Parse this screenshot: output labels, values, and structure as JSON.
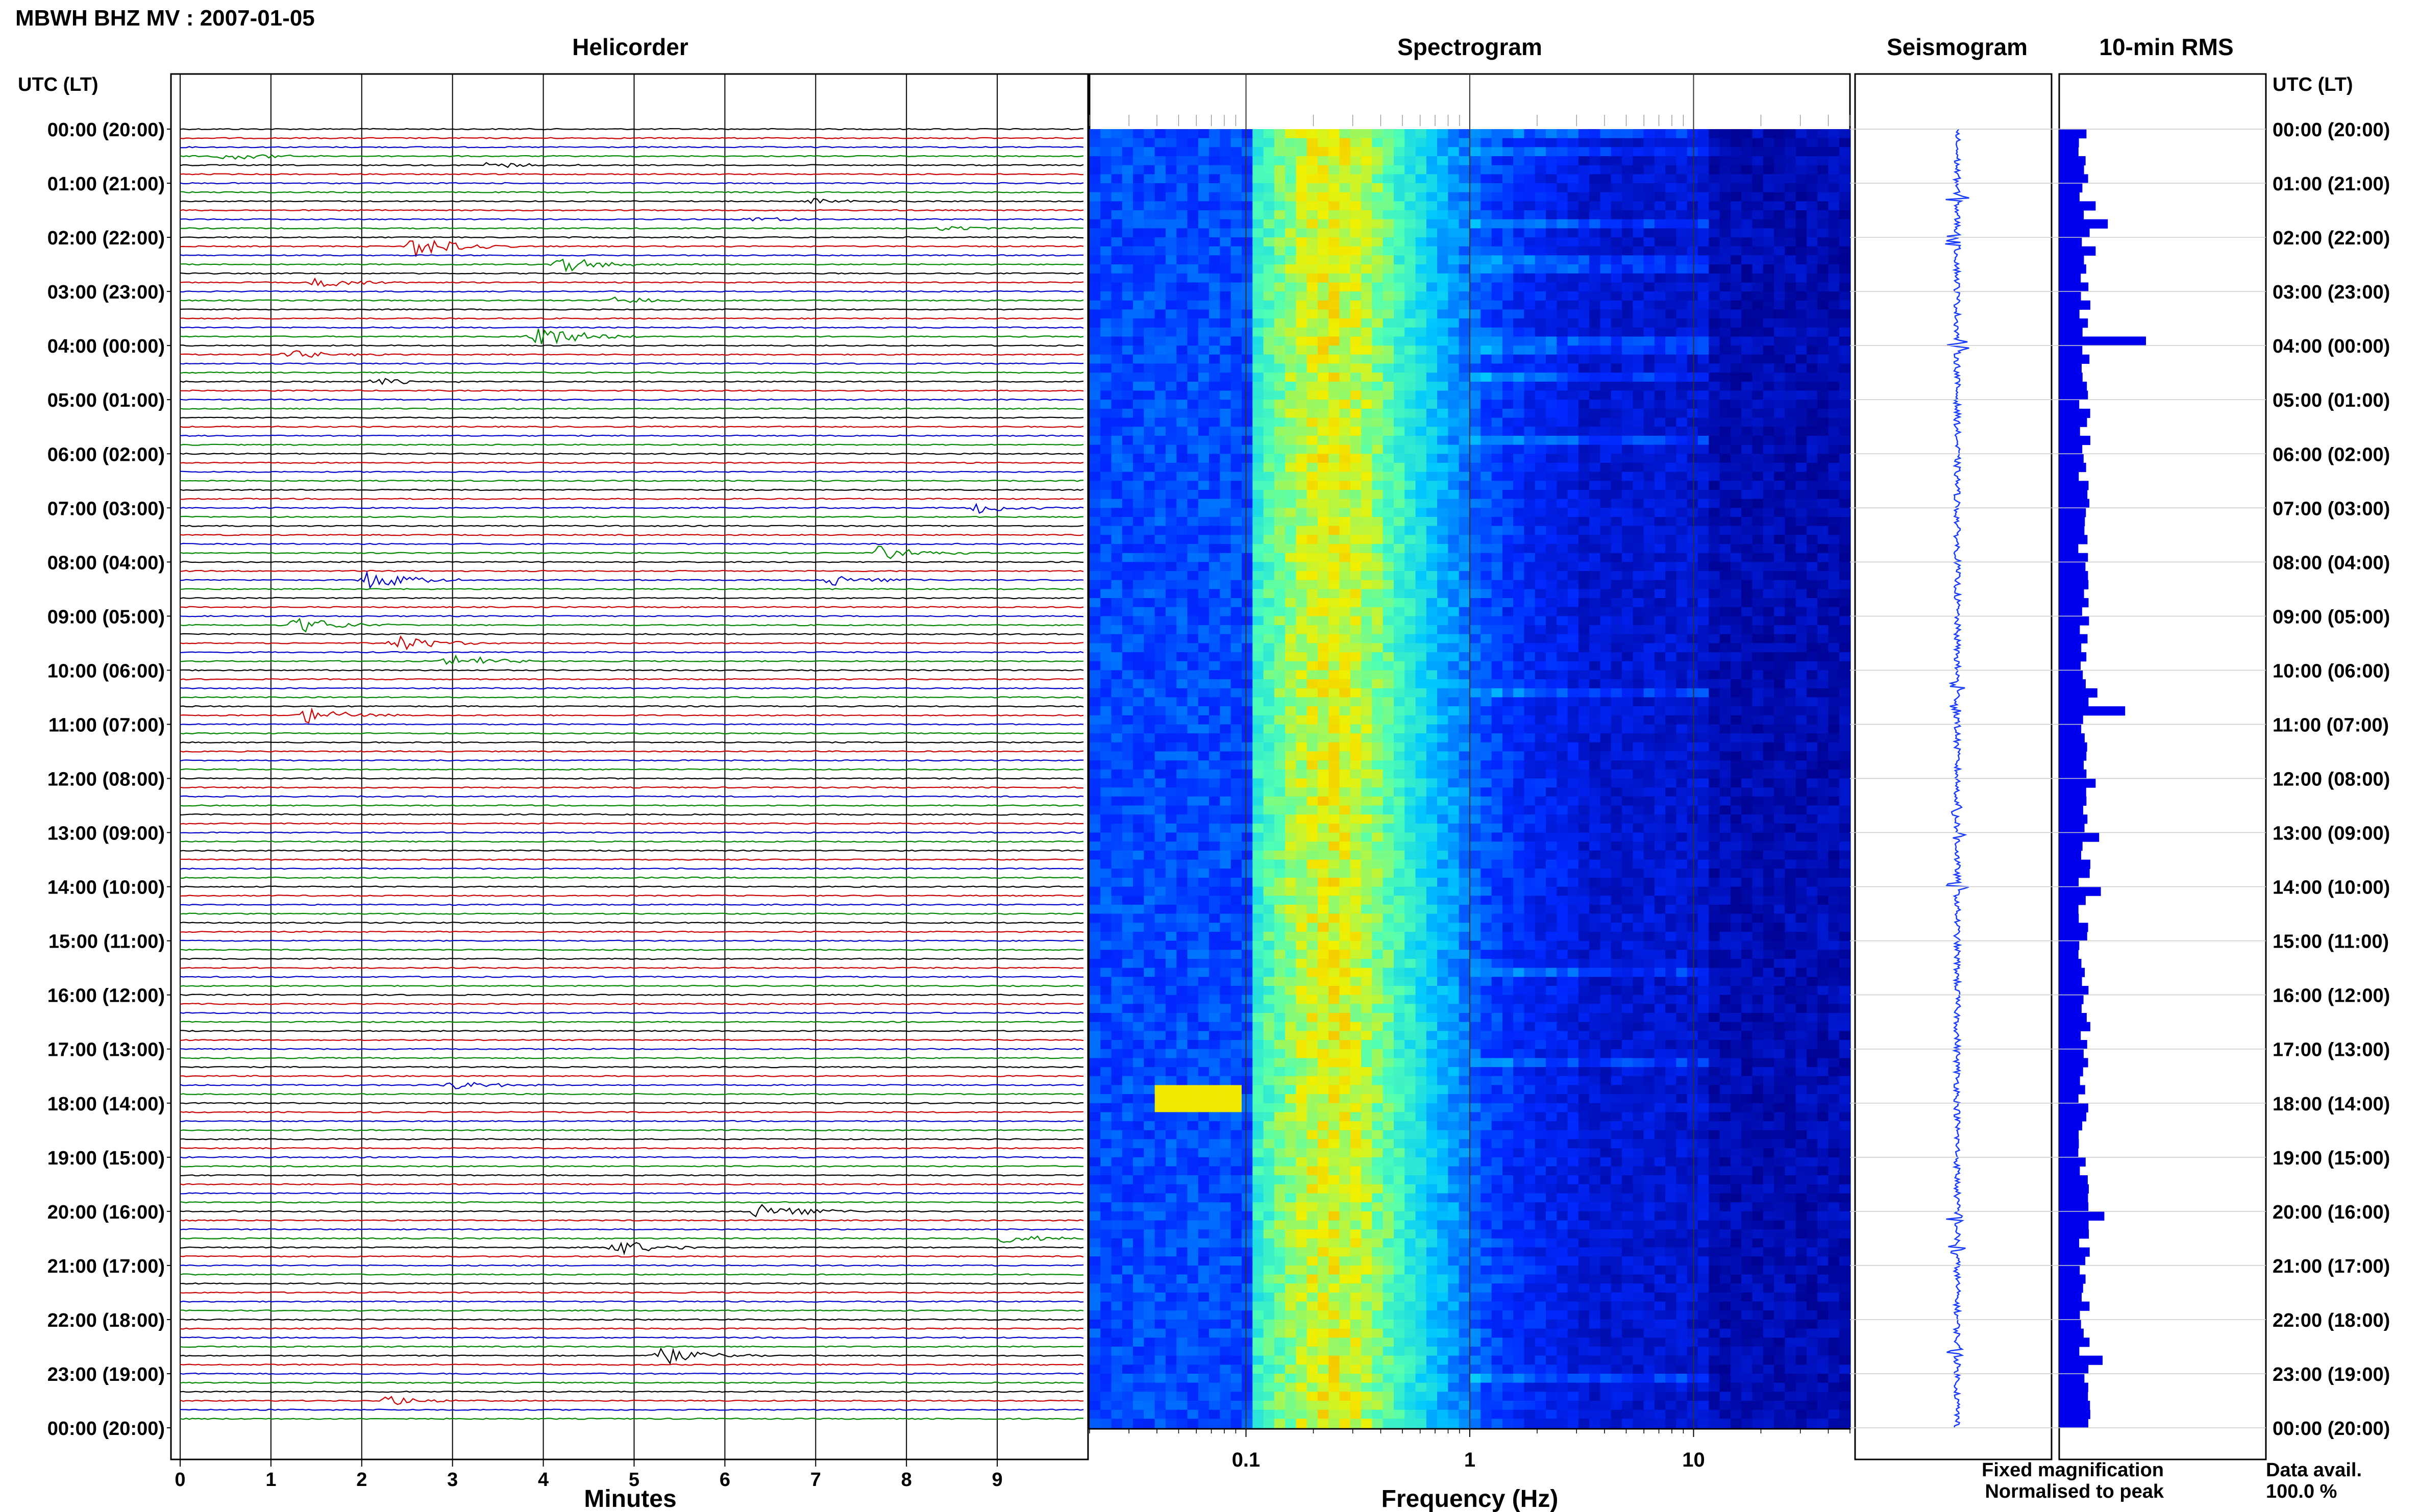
{
  "figure": {
    "title": "MBWH BHZ MV : 2007-01-05",
    "panels": {
      "helicorder": "Helicorder",
      "spectrogram": "Spectrogram",
      "seismogram": "Seismogram",
      "rms": "10-min RMS"
    },
    "left_axis_header": "UTC (LT)",
    "right_axis_header": "UTC (LT)",
    "time_labels": [
      "00:00 (20:00)",
      "01:00 (21:00)",
      "02:00 (22:00)",
      "03:00 (23:00)",
      "04:00 (00:00)",
      "05:00 (01:00)",
      "06:00 (02:00)",
      "07:00 (03:00)",
      "08:00 (04:00)",
      "09:00 (05:00)",
      "10:00 (06:00)",
      "11:00 (07:00)",
      "12:00 (08:00)",
      "13:00 (09:00)",
      "14:00 (10:00)",
      "15:00 (11:00)",
      "16:00 (12:00)",
      "17:00 (13:00)",
      "18:00 (14:00)",
      "19:00 (15:00)",
      "20:00 (16:00)",
      "21:00 (17:00)",
      "22:00 (18:00)",
      "23:00 (19:00)",
      "00:00 (20:00)"
    ],
    "legend": {
      "fixed": "Fixed magnification",
      "normalised": "Normalised to peak",
      "fixed_color": "#0000ff",
      "normalised_color": "#ff0000"
    },
    "data_avail_label": "Data avail.",
    "data_avail_value": "100.0 %",
    "colors": {
      "trace_colors": [
        "#000000",
        "#cc0000",
        "#0000cc",
        "#008800"
      ],
      "rms_bar": "#0000ee",
      "seismogram": "#1a3cff"
    }
  },
  "chart_data": [
    {
      "type": "line",
      "title": "Helicorder",
      "xlabel": "Minutes",
      "x_ticks": [
        "0",
        "1",
        "2",
        "3",
        "4",
        "5",
        "6",
        "7",
        "8",
        "9"
      ],
      "xlim": [
        0,
        10
      ],
      "rows_per_hour": 6,
      "events": [
        {
          "row": 3,
          "minute": 0.5,
          "amp": 1.0
        },
        {
          "row": 4,
          "minute": 3.4,
          "amp": 0.8
        },
        {
          "row": 8,
          "minute": 7.0,
          "amp": 0.8
        },
        {
          "row": 10,
          "minute": 6.3,
          "amp": 0.7
        },
        {
          "row": 11,
          "minute": 8.4,
          "amp": 0.7
        },
        {
          "row": 13,
          "minute": 2.6,
          "amp": 2.6
        },
        {
          "row": 15,
          "minute": 4.2,
          "amp": 2.0
        },
        {
          "row": 17,
          "minute": 1.5,
          "amp": 1.2
        },
        {
          "row": 19,
          "minute": 4.8,
          "amp": 0.9
        },
        {
          "row": 23,
          "minute": 3.9,
          "amp": 3.2
        },
        {
          "row": 25,
          "minute": 1.2,
          "amp": 1.0
        },
        {
          "row": 28,
          "minute": 2.2,
          "amp": 0.9
        },
        {
          "row": 42,
          "minute": 8.8,
          "amp": 1.2
        },
        {
          "row": 47,
          "minute": 7.7,
          "amp": 1.8
        },
        {
          "row": 50,
          "minute": 2.1,
          "amp": 2.2
        },
        {
          "row": 50,
          "minute": 7.2,
          "amp": 1.4
        },
        {
          "row": 55,
          "minute": 1.3,
          "amp": 2.0
        },
        {
          "row": 57,
          "minute": 2.4,
          "amp": 1.8
        },
        {
          "row": 59,
          "minute": 3.0,
          "amp": 1.6
        },
        {
          "row": 65,
          "minute": 1.4,
          "amp": 1.8
        },
        {
          "row": 106,
          "minute": 3.0,
          "amp": 1.0
        },
        {
          "row": 120,
          "minute": 6.4,
          "amp": 2.2
        },
        {
          "row": 123,
          "minute": 9.1,
          "amp": 1.2
        },
        {
          "row": 124,
          "minute": 4.8,
          "amp": 2.0
        },
        {
          "row": 136,
          "minute": 5.3,
          "amp": 2.2
        },
        {
          "row": 141,
          "minute": 2.3,
          "amp": 1.2
        }
      ]
    },
    {
      "type": "heatmap",
      "title": "Spectrogram",
      "xlabel": "Frequency (Hz)",
      "x_scale": "log",
      "xlim": [
        0.02,
        50
      ],
      "x_ticks": [
        0.1,
        1,
        10
      ],
      "x_tick_labels": [
        "0.1",
        "1",
        "10"
      ],
      "peak_band_hz": [
        0.15,
        0.4
      ],
      "long_period_event": {
        "time_utc": "17:50",
        "freq_hz": [
          0.04,
          0.07
        ]
      }
    },
    {
      "type": "line",
      "title": "Seismogram",
      "xlabel": "",
      "events_utc_hours": [
        1.25,
        2.05,
        4.0,
        10.3,
        10.7,
        12.6,
        13.1,
        14.0,
        20.1,
        20.7,
        22.6
      ]
    },
    {
      "type": "bar",
      "title": "10-min RMS",
      "xlabel": "",
      "max_bar_fraction": 1.0,
      "peaks": [
        {
          "row": 8,
          "value": 0.42
        },
        {
          "row": 10,
          "value": 0.56
        },
        {
          "row": 13,
          "value": 0.42
        },
        {
          "row": 23,
          "value": 1.0
        },
        {
          "row": 62,
          "value": 0.44
        },
        {
          "row": 64,
          "value": 0.76
        },
        {
          "row": 72,
          "value": 0.42
        },
        {
          "row": 78,
          "value": 0.46
        },
        {
          "row": 84,
          "value": 0.48
        },
        {
          "row": 136,
          "value": 0.5
        },
        {
          "row": 120,
          "value": 0.52
        }
      ]
    }
  ]
}
